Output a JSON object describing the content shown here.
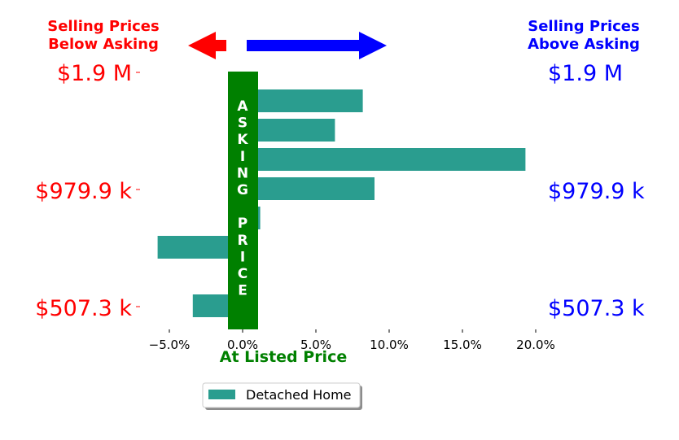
{
  "header": {
    "left_line1": "Selling Prices",
    "left_line2": "Below Asking",
    "right_line1": "Selling Prices",
    "right_line2": "Above Asking"
  },
  "price_labels": {
    "left": [
      "$1.9 M",
      "$979.9 k",
      "$507.3 k"
    ],
    "right": [
      "$1.9 M",
      "$979.9 k",
      "$507.3 k"
    ]
  },
  "band_text": "ASKING PRICE",
  "xlabel": "At Listed Price",
  "colors": {
    "below": "#ff0000",
    "above": "#0000ff",
    "band": "#008000",
    "bar": "#2a9d8f"
  },
  "chart_data": {
    "type": "bar",
    "orientation": "horizontal",
    "series": [
      {
        "name": "Detached Home",
        "values": [
          8.2,
          6.3,
          19.3,
          9.0,
          1.2,
          -5.8,
          -1.0,
          -3.4
        ]
      }
    ],
    "xlim": [
      -6.5,
      20.5
    ],
    "xticks": [
      -5,
      0,
      5,
      10,
      15,
      20
    ],
    "xtick_labels": [
      "−5.0%",
      "0.0%",
      "5.0%",
      "10.0%",
      "15.0%",
      "20.0%"
    ],
    "legend_position": "bottom-center",
    "grid": false
  }
}
